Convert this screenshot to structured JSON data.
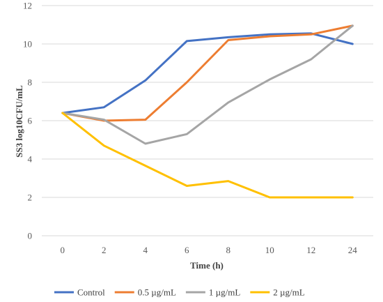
{
  "chart_data": {
    "type": "line",
    "title": "",
    "xlabel": "Time (h)",
    "ylabel": "SS3 log10CFU/mL",
    "categories": [
      "0",
      "2",
      "4",
      "6",
      "8",
      "10",
      "12",
      "24"
    ],
    "ylim": [
      0,
      12
    ],
    "yticks": [
      "0",
      "2",
      "4",
      "6",
      "8",
      "10",
      "12"
    ],
    "grid": true,
    "legend_position": "bottom",
    "series": [
      {
        "name": "Control",
        "color": "#4472C4",
        "values": [
          6.4,
          6.7,
          8.1,
          10.15,
          10.35,
          10.5,
          10.55,
          10.0
        ]
      },
      {
        "name": "0.5 µg/mL",
        "color": "#ED7D31",
        "values": [
          6.4,
          6.0,
          6.05,
          8.0,
          10.2,
          10.4,
          10.5,
          10.95
        ]
      },
      {
        "name": "1 µg/mL",
        "color": "#A5A5A5",
        "values": [
          6.4,
          6.05,
          4.8,
          5.3,
          6.95,
          8.15,
          9.2,
          10.95
        ]
      },
      {
        "name": "2 µg/mL",
        "color": "#FFC000",
        "values": [
          6.4,
          4.7,
          3.65,
          2.6,
          2.85,
          2.0,
          2.0,
          2.0
        ]
      }
    ]
  }
}
